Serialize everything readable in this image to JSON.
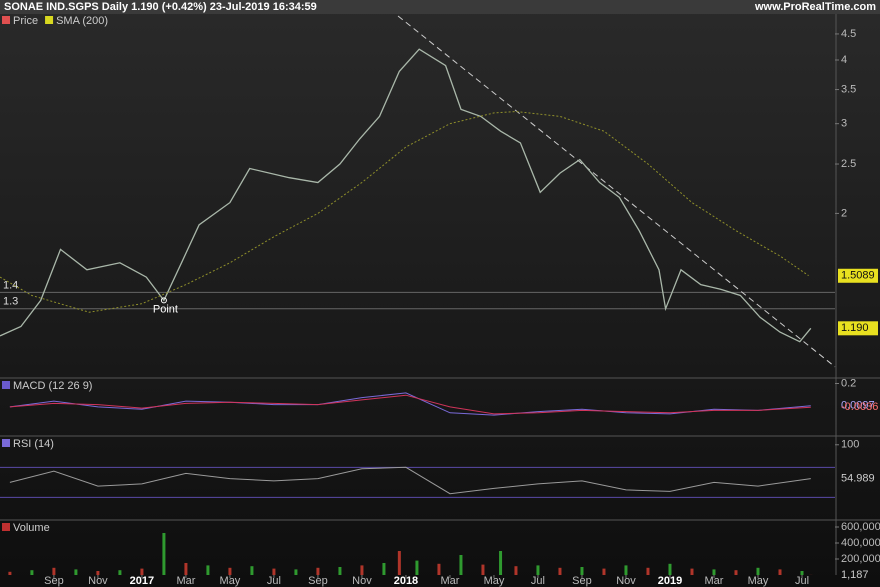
{
  "chart_data": [
    {
      "type": "line",
      "title": "SONAE IND.SGPS Daily 1.190 (+0.42%) 23-Jul-2019 16:34:59",
      "source": "www.ProRealTime.com",
      "log_scale": true,
      "xlim": [
        -2.45,
        35.5
      ],
      "ylim": [
        0.955,
        4.88
      ],
      "yticks": [
        4.5,
        4,
        3.5,
        3,
        2.5,
        2
      ],
      "series": [
        {
          "name": "Price",
          "color": "#a9b7a9",
          "x": [
            -2.45,
            -1.5,
            -0.6,
            0.3,
            1.5,
            3,
            4.2,
            5,
            5.8,
            6.6,
            8,
            8.9,
            10.7,
            12,
            13,
            13.9,
            14.8,
            15.7,
            16.6,
            17.8,
            18.5,
            19.4,
            20.3,
            21.2,
            22.1,
            23,
            23.9,
            24.8,
            25.7,
            26.6,
            27.5,
            27.8,
            28.5,
            29.4,
            30.3,
            31.2,
            32.1,
            33,
            33.9,
            34.4
          ],
          "values": [
            1.15,
            1.2,
            1.35,
            1.7,
            1.55,
            1.6,
            1.5,
            1.35,
            1.6,
            1.9,
            2.1,
            2.45,
            2.35,
            2.3,
            2.5,
            2.8,
            3.1,
            3.8,
            4.2,
            3.9,
            3.2,
            3.1,
            2.9,
            2.75,
            2.2,
            2.4,
            2.55,
            2.3,
            2.15,
            1.85,
            1.55,
            1.3,
            1.55,
            1.45,
            1.42,
            1.38,
            1.25,
            1.17,
            1.12,
            1.19
          ],
          "last": {
            "value": 1.19,
            "label": "1.190"
          }
        },
        {
          "name": "SMA (200)",
          "color": "#8f8f2a",
          "x": [
            -2.45,
            -1,
            1.6,
            4,
            6,
            8,
            10,
            12,
            14,
            16,
            18,
            20,
            21,
            23,
            25,
            27,
            29,
            31,
            33,
            34.3
          ],
          "values": [
            1.5,
            1.38,
            1.28,
            1.33,
            1.45,
            1.6,
            1.8,
            2.0,
            2.3,
            2.7,
            3.0,
            3.15,
            3.17,
            3.1,
            2.9,
            2.5,
            2.1,
            1.85,
            1.65,
            1.51
          ],
          "last": 1.5089
        }
      ],
      "levels": [
        1.4,
        1.3
      ],
      "annotations": [
        {
          "text": "Point",
          "x": 5,
          "y": 1.35
        }
      ],
      "trendline": {
        "x": [
          15.64,
          35.5
        ],
        "y": [
          4.88,
          1.0
        ]
      }
    },
    {
      "type": "line",
      "title": "MACD (12 26 9)",
      "xlim": [
        -2.45,
        35.5
      ],
      "ylim": [
        -0.24,
        0.23
      ],
      "yticks": [
        0.2
      ],
      "series": [
        {
          "name": "MACD",
          "color": "#7a6ad8",
          "x": [
            -2,
            0,
            2,
            4,
            6,
            8,
            10,
            12,
            14,
            16,
            18,
            20,
            22,
            24,
            26,
            28,
            30,
            32,
            34.4
          ],
          "values": [
            0.0,
            0.05,
            0.0,
            -0.02,
            0.05,
            0.04,
            0.02,
            0.02,
            0.08,
            0.12,
            -0.05,
            -0.07,
            -0.04,
            -0.02,
            -0.05,
            -0.06,
            -0.02,
            -0.03,
            0.0097
          ],
          "last": 0.0097
        },
        {
          "name": "Signal",
          "color": "#d0345a",
          "x": [
            -2,
            0,
            2,
            4,
            6,
            8,
            10,
            12,
            14,
            16,
            18,
            20,
            22,
            24,
            26,
            28,
            30,
            32,
            34.4
          ],
          "values": [
            0.0,
            0.03,
            0.02,
            -0.01,
            0.03,
            0.04,
            0.03,
            0.02,
            0.06,
            0.1,
            0.0,
            -0.06,
            -0.05,
            -0.03,
            -0.04,
            -0.05,
            -0.03,
            -0.03,
            -0.0036
          ],
          "last": -0.0036
        }
      ]
    },
    {
      "type": "line",
      "title": "RSI (14)",
      "xlim": [
        -2.45,
        35.5
      ],
      "ylim": [
        0,
        109
      ],
      "yticks": [
        100
      ],
      "levels": [
        70,
        30
      ],
      "series": [
        {
          "name": "RSI",
          "color": "#9a9a9a",
          "x": [
            -2,
            0,
            2,
            4,
            6,
            8,
            10,
            12,
            14,
            16,
            18,
            20,
            22,
            24,
            26,
            28,
            30,
            32,
            34.4
          ],
          "values": [
            50,
            65,
            45,
            48,
            62,
            55,
            52,
            55,
            68,
            70,
            35,
            42,
            48,
            52,
            40,
            38,
            50,
            45,
            54.989
          ],
          "last": 54.989
        }
      ]
    },
    {
      "type": "bar",
      "title": "Volume",
      "xlim": [
        -2.45,
        35.5
      ],
      "ylim": [
        0,
        662500
      ],
      "yticks": [
        {
          "value": 600000,
          "label": "600,000"
        },
        {
          "value": 400000,
          "label": "400,000"
        },
        {
          "value": 200000,
          "label": "200,000"
        }
      ],
      "series": [
        {
          "name": "Volume",
          "color": "#b0352a",
          "x": [
            -2,
            -1,
            0,
            1,
            2,
            3,
            4,
            5,
            6,
            7,
            8,
            9,
            10,
            11,
            12,
            13,
            14,
            15,
            15.7,
            16.5,
            17.5,
            18.5,
            19.5,
            20.3,
            21,
            22,
            23,
            24,
            25,
            26,
            27,
            28,
            29,
            30,
            31,
            32,
            33,
            34,
            34.4
          ],
          "values": [
            40000,
            60000,
            90000,
            70000,
            50000,
            60000,
            80000,
            525000,
            150000,
            120000,
            90000,
            110000,
            80000,
            70000,
            90000,
            100000,
            120000,
            150000,
            300000,
            180000,
            140000,
            250000,
            130000,
            300000,
            110000,
            120000,
            90000,
            100000,
            80000,
            120000,
            90000,
            140000,
            80000,
            70000,
            60000,
            90000,
            70000,
            50000,
            1187
          ],
          "last": {
            "value": 1187,
            "label": "1,187"
          }
        }
      ],
      "xticks": [
        {
          "value": 0,
          "label": "Sep"
        },
        {
          "value": 2,
          "label": "Nov"
        },
        {
          "value": 4,
          "label": "2017"
        },
        {
          "value": 6,
          "label": "Mar"
        },
        {
          "value": 8,
          "label": "May"
        },
        {
          "value": 10,
          "label": "Jul"
        },
        {
          "value": 12,
          "label": "Sep"
        },
        {
          "value": 14,
          "label": "Nov"
        },
        {
          "value": 16,
          "label": "2018"
        },
        {
          "value": 18,
          "label": "Mar"
        },
        {
          "value": 20,
          "label": "May"
        },
        {
          "value": 22,
          "label": "Jul"
        },
        {
          "value": 24,
          "label": "Sep"
        },
        {
          "value": 26,
          "label": "Nov"
        },
        {
          "value": 28,
          "label": "2019"
        },
        {
          "value": 30,
          "label": "Mar"
        },
        {
          "value": 32,
          "label": "May"
        },
        {
          "value": 34,
          "label": "Jul"
        }
      ]
    }
  ]
}
